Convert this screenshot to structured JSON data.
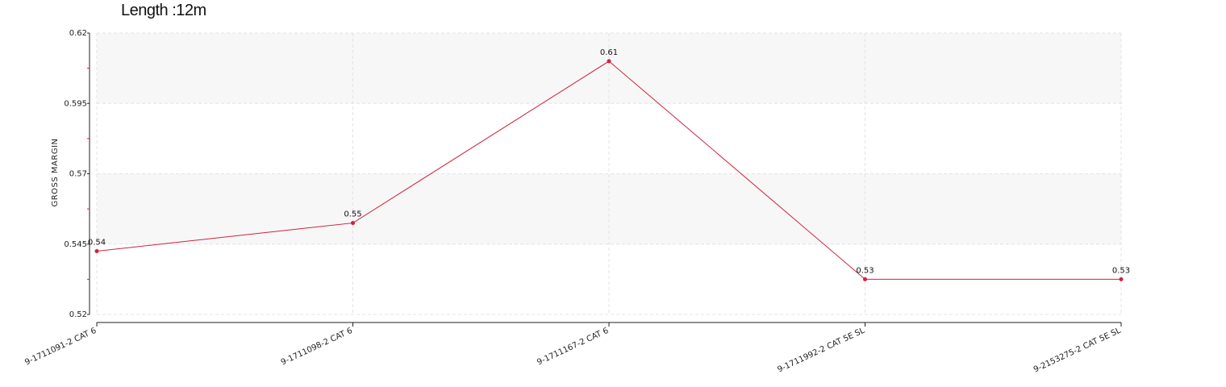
{
  "chart_data": {
    "type": "line",
    "title": "Length :12m",
    "xlabel": "",
    "ylabel": "GROSS MARGIN",
    "categories": [
      "9-1711091-2 CAT 6",
      "9-1711098-2 CAT 6",
      "9-1711167-2 CAT 6",
      "9-1711992-2 CAT 5E SL",
      "9-2153275-2 CAT 5E SL"
    ],
    "series": [
      {
        "values": [
          0.5425,
          0.5525,
          0.61,
          0.5325,
          0.5325
        ],
        "labels": [
          "0.54",
          "0.55",
          "0.61",
          "0.53",
          "0.53"
        ]
      }
    ],
    "ylim": [
      0.52,
      0.62
    ],
    "yticks": [
      0.52,
      0.545,
      0.57,
      0.595,
      0.62
    ],
    "ytick_labels": [
      "0.52",
      "0.545",
      "0.57",
      "0.595",
      "0.62"
    ],
    "grid": true,
    "line_color": "#d0213f",
    "band_color": "#f7f7f7"
  }
}
